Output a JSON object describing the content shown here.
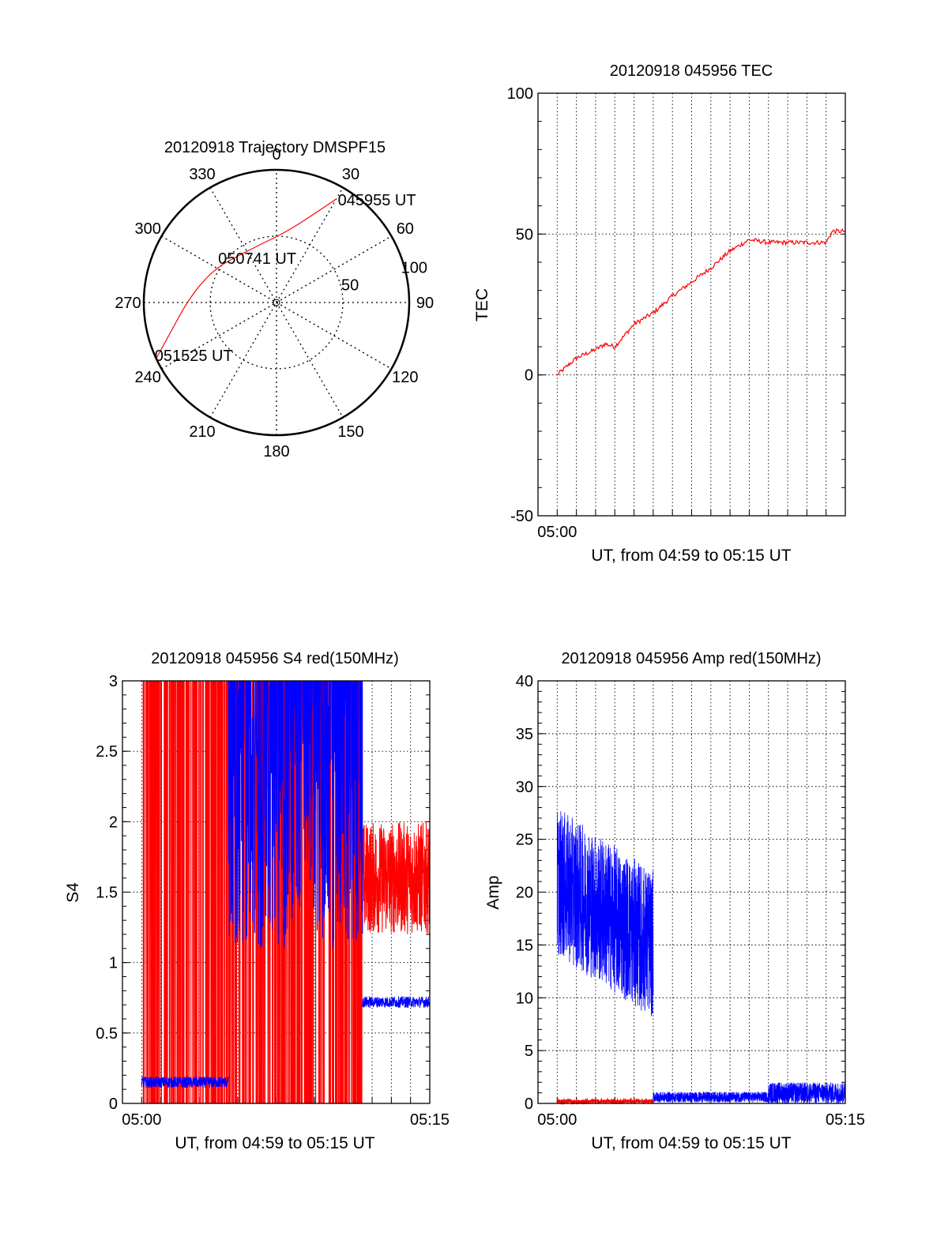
{
  "colors": {
    "red": "#ff0000",
    "blue": "#0000ff",
    "axis": "#000000",
    "grid": "#000000"
  },
  "chart_data": [
    {
      "id": "trajectory",
      "type": "polar",
      "title": "20120918 Trajectory DMSPF15",
      "angle_labels": [
        "0",
        "30",
        "60",
        "90",
        "120",
        "150",
        "180",
        "210",
        "240",
        "270",
        "300",
        "330"
      ],
      "radius_labels": [
        "50",
        "100"
      ],
      "radial_max": 100,
      "path": [
        {
          "az": 30,
          "r": 90,
          "label": "045955 UT"
        },
        {
          "az": 10,
          "r": 55
        },
        {
          "az": 340,
          "r": 45,
          "label": "050741 UT"
        },
        {
          "az": 290,
          "r": 60
        },
        {
          "az": 245,
          "r": 100,
          "label": "051525 UT"
        }
      ],
      "grid": true
    },
    {
      "id": "tec",
      "type": "line",
      "title": "20120918 045956 TEC",
      "xlabel": "UT, from 04:59 to 05:15 UT",
      "ylabel": "TEC",
      "xlim": [
        "04:59",
        "05:15"
      ],
      "ylim": [
        -50,
        100
      ],
      "yticks": [
        "100",
        "50",
        "0",
        "-50"
      ],
      "xticks": [
        "05:00"
      ],
      "grid": true,
      "series": [
        {
          "color": "red",
          "points": [
            [
              "05:00",
              0
            ],
            [
              "05:01",
              6
            ],
            [
              "05:02",
              9
            ],
            [
              "05:02:30",
              11
            ],
            [
              "05:03",
              10
            ],
            [
              "05:04",
              18
            ],
            [
              "05:05",
              22
            ],
            [
              "05:06",
              28
            ],
            [
              "05:07",
              33
            ],
            [
              "05:08",
              38
            ],
            [
              "05:09",
              44
            ],
            [
              "05:10",
              48
            ],
            [
              "05:11",
              47
            ],
            [
              "05:12",
              47
            ],
            [
              "05:13",
              47
            ],
            [
              "05:14",
              47
            ],
            [
              "05:14:20",
              51
            ],
            [
              "05:15",
              51
            ]
          ]
        }
      ]
    },
    {
      "id": "s4",
      "type": "line",
      "title": "20120918 045956 S4 red(150MHz)",
      "xlabel": "UT, from 04:59 to 05:15 UT",
      "ylabel": "S4",
      "xlim": [
        "04:59",
        "05:15"
      ],
      "ylim": [
        0,
        3
      ],
      "yticks": [
        "3",
        "2.5",
        "2",
        "1.5",
        "1",
        "0.5",
        "0"
      ],
      "xticks": [
        "05:00",
        "05:15"
      ],
      "grid": true,
      "series": [
        {
          "color": "blue",
          "segments": [
            {
              "from": "05:00",
              "to": "05:04:30",
              "level": 0.15
            },
            {
              "from": "05:04:30",
              "to": "05:11:30",
              "level": 2.3
            },
            {
              "from": "05:11:30",
              "to": "05:15",
              "level": 0.72
            }
          ]
        },
        {
          "color": "red",
          "segments": [
            {
              "from": "05:00",
              "to": "05:11:30",
              "level": 3.0
            },
            {
              "from": "05:11:30",
              "to": "05:15",
              "level": 1.6
            }
          ]
        }
      ]
    },
    {
      "id": "amp",
      "type": "line",
      "title": "20120918 045956 Amp red(150MHz)",
      "xlabel": "UT, from 04:59 to 05:15 UT",
      "ylabel": "Amp",
      "xlim": [
        "04:59",
        "05:15"
      ],
      "ylim": [
        0,
        40
      ],
      "yticks": [
        "40",
        "35",
        "30",
        "25",
        "20",
        "15",
        "10",
        "5",
        "0"
      ],
      "xticks": [
        "05:00",
        "05:15"
      ],
      "grid": true,
      "series": [
        {
          "color": "blue",
          "segments": [
            {
              "from": "05:00",
              "to": "05:05",
              "center_start": 21,
              "center_end": 15,
              "spread": 7
            },
            {
              "from": "05:05",
              "to": "05:11",
              "center_start": 0.6,
              "center_end": 0.6,
              "spread": 0.5
            },
            {
              "from": "05:11",
              "to": "05:15",
              "center_start": 1.0,
              "center_end": 1.0,
              "spread": 1.0
            }
          ]
        },
        {
          "color": "red",
          "segments": [
            {
              "from": "05:00",
              "to": "05:05",
              "center_start": 0.2,
              "center_end": 0.2,
              "spread": 0.1
            }
          ]
        }
      ]
    }
  ]
}
